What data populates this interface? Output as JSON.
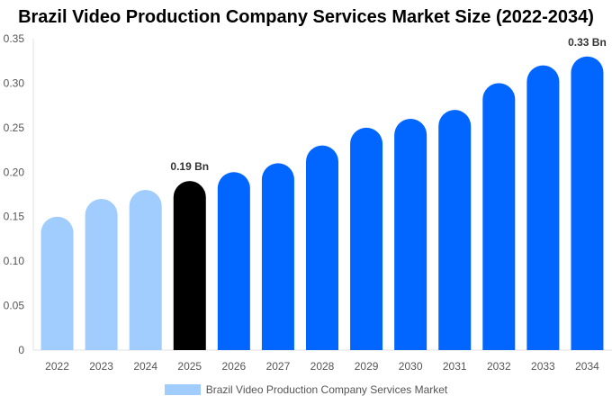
{
  "chart_data": {
    "type": "bar",
    "title": "Brazil Video Production Company Services Market Size (2022-2034)",
    "categories": [
      "2022",
      "2023",
      "2024",
      "2025",
      "2026",
      "2027",
      "2028",
      "2029",
      "2030",
      "2031",
      "2032",
      "2033",
      "2034"
    ],
    "series": [
      {
        "name": "Brazil Video Production Company Services Market",
        "values": [
          0.15,
          0.17,
          0.18,
          0.19,
          0.2,
          0.21,
          0.23,
          0.25,
          0.26,
          0.27,
          0.3,
          0.32,
          0.33
        ]
      }
    ],
    "ylim": [
      0,
      0.35
    ],
    "yticks": [
      "0",
      "0.05",
      "0.10",
      "0.15",
      "0.20",
      "0.25",
      "0.30",
      "0.35"
    ],
    "data_labels": {
      "3": "0.19 Bn",
      "12": "0.33 Bn"
    },
    "colors": {
      "historical": "#a0cdfd",
      "current": "#000000",
      "forecast": "#0066ff"
    },
    "grid": false,
    "legend_position": "bottom"
  }
}
